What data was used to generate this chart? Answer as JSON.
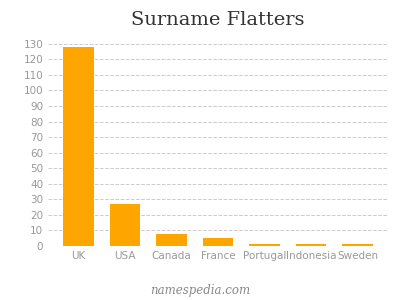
{
  "title": "Surname Flatters",
  "categories": [
    "UK",
    "USA",
    "Canada",
    "France",
    "Portugal",
    "Indonesia",
    "Sweden"
  ],
  "values": [
    128,
    27,
    8,
    5,
    1,
    1,
    1
  ],
  "bar_color": "#FFA500",
  "background_color": "#ffffff",
  "ylim": [
    0,
    135
  ],
  "yticks": [
    0,
    10,
    20,
    30,
    40,
    50,
    60,
    70,
    80,
    90,
    100,
    110,
    120,
    130
  ],
  "grid_color": "#cccccc",
  "title_fontsize": 14,
  "tick_fontsize": 7.5,
  "watermark": "namespedia.com",
  "watermark_fontsize": 8.5,
  "title_color": "#333333",
  "tick_color": "#999999"
}
